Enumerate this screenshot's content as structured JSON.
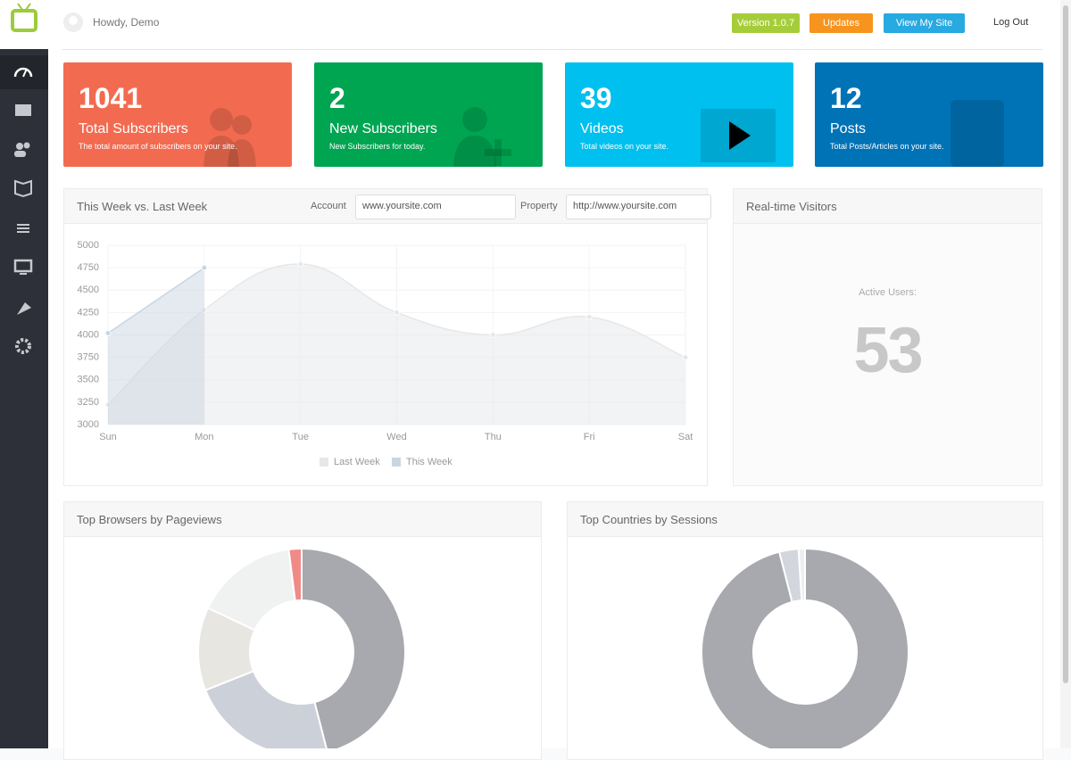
{
  "header": {
    "greeting": "Howdy, Demo",
    "version": "Version 1.0.7",
    "updates": "Updates",
    "view_site": "View My Site",
    "logout": "Log Out"
  },
  "stats": [
    {
      "value": 1041,
      "title": "Total Subscribers",
      "description": "The total amount of subscribers on your site.",
      "color": "#f26b50"
    },
    {
      "value": 2,
      "title": "New Subscribers",
      "description": "New Subscribers for today.",
      "color": "#00a551"
    },
    {
      "value": 39,
      "title": "Videos",
      "description": "Total videos on your site.",
      "color": "#00c0ef"
    },
    {
      "value": 12,
      "title": "Posts",
      "description": "Total Posts/Articles on your site.",
      "color": "#0073b7"
    }
  ],
  "filters": {
    "account_label": "Account",
    "account": "www.yoursite.com",
    "property_label": "Property",
    "property": "http://www.yoursite.com"
  },
  "realtime": {
    "title": "Real-time Visitors",
    "label": "Active Users:",
    "value": 53
  },
  "chart_data": [
    {
      "type": "line",
      "title": "This Week vs. Last Week",
      "categories": [
        "Sun",
        "Mon",
        "Tue",
        "Wed",
        "Thu",
        "Fri",
        "Sat"
      ],
      "series": [
        {
          "name": "Last Week",
          "color": "#e6e7e9",
          "values": [
            3220,
            4280,
            4790,
            4250,
            4000,
            4200,
            3750
          ]
        },
        {
          "name": "This Week",
          "color": "#c9d6e0",
          "values": [
            4020,
            4750,
            null,
            null,
            null,
            null,
            null
          ]
        }
      ],
      "ylim": [
        3000,
        5000
      ],
      "yticks": [
        3000,
        3250,
        3500,
        3750,
        4000,
        4250,
        4500,
        4750,
        5000
      ],
      "grid": true,
      "legend": "bottom"
    },
    {
      "type": "pie",
      "title": "Top Browsers by Pageviews",
      "values": [
        46,
        23,
        13,
        16,
        2
      ],
      "colors": [
        "#a7a9ae",
        "#ccd0d9",
        "#e8e6e1",
        "#f0f1f1",
        "#f08a86"
      ],
      "donut": true
    },
    {
      "type": "pie",
      "title": "Top Countries by Sessions",
      "values": [
        96,
        3,
        1
      ],
      "colors": [
        "#a7a9ae",
        "#d3d6dc",
        "#eceef0"
      ],
      "donut": true
    }
  ]
}
